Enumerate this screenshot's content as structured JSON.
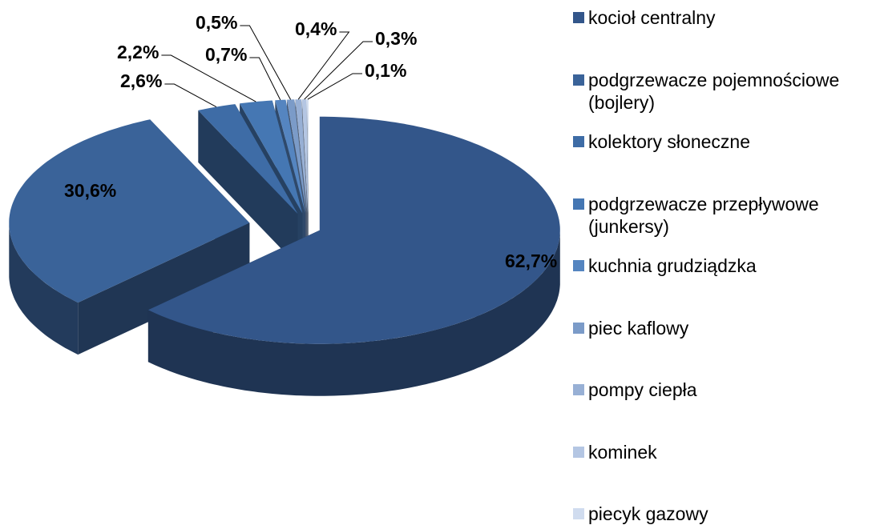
{
  "chart_data": {
    "type": "pie",
    "three_d": true,
    "exploded": true,
    "categories": [
      "kocioł centralny",
      "podgrzewacze pojemnościowe (bojlery)",
      "kolektory słoneczne",
      "podgrzewacze przepływowe (junkersy)",
      "kuchnia grudziądzka",
      "piec kaflowy",
      "pompy ciepła",
      "kominek",
      "piecyk gazowy"
    ],
    "values": [
      62.7,
      30.6,
      2.6,
      2.2,
      0.7,
      0.5,
      0.4,
      0.3,
      0.1
    ],
    "value_labels": [
      "62,7%",
      "30,6%",
      "2,6%",
      "2,2%",
      "0,7%",
      "0,5%",
      "0,4%",
      "0,3%",
      "0,1%"
    ],
    "colors": [
      "#33568a",
      "#3a6399",
      "#3e6ca6",
      "#4577b3",
      "#5585c0",
      "#7b9bc8",
      "#98b0d5",
      "#b4c6e3",
      "#d0dcef"
    ],
    "legend": "right"
  }
}
